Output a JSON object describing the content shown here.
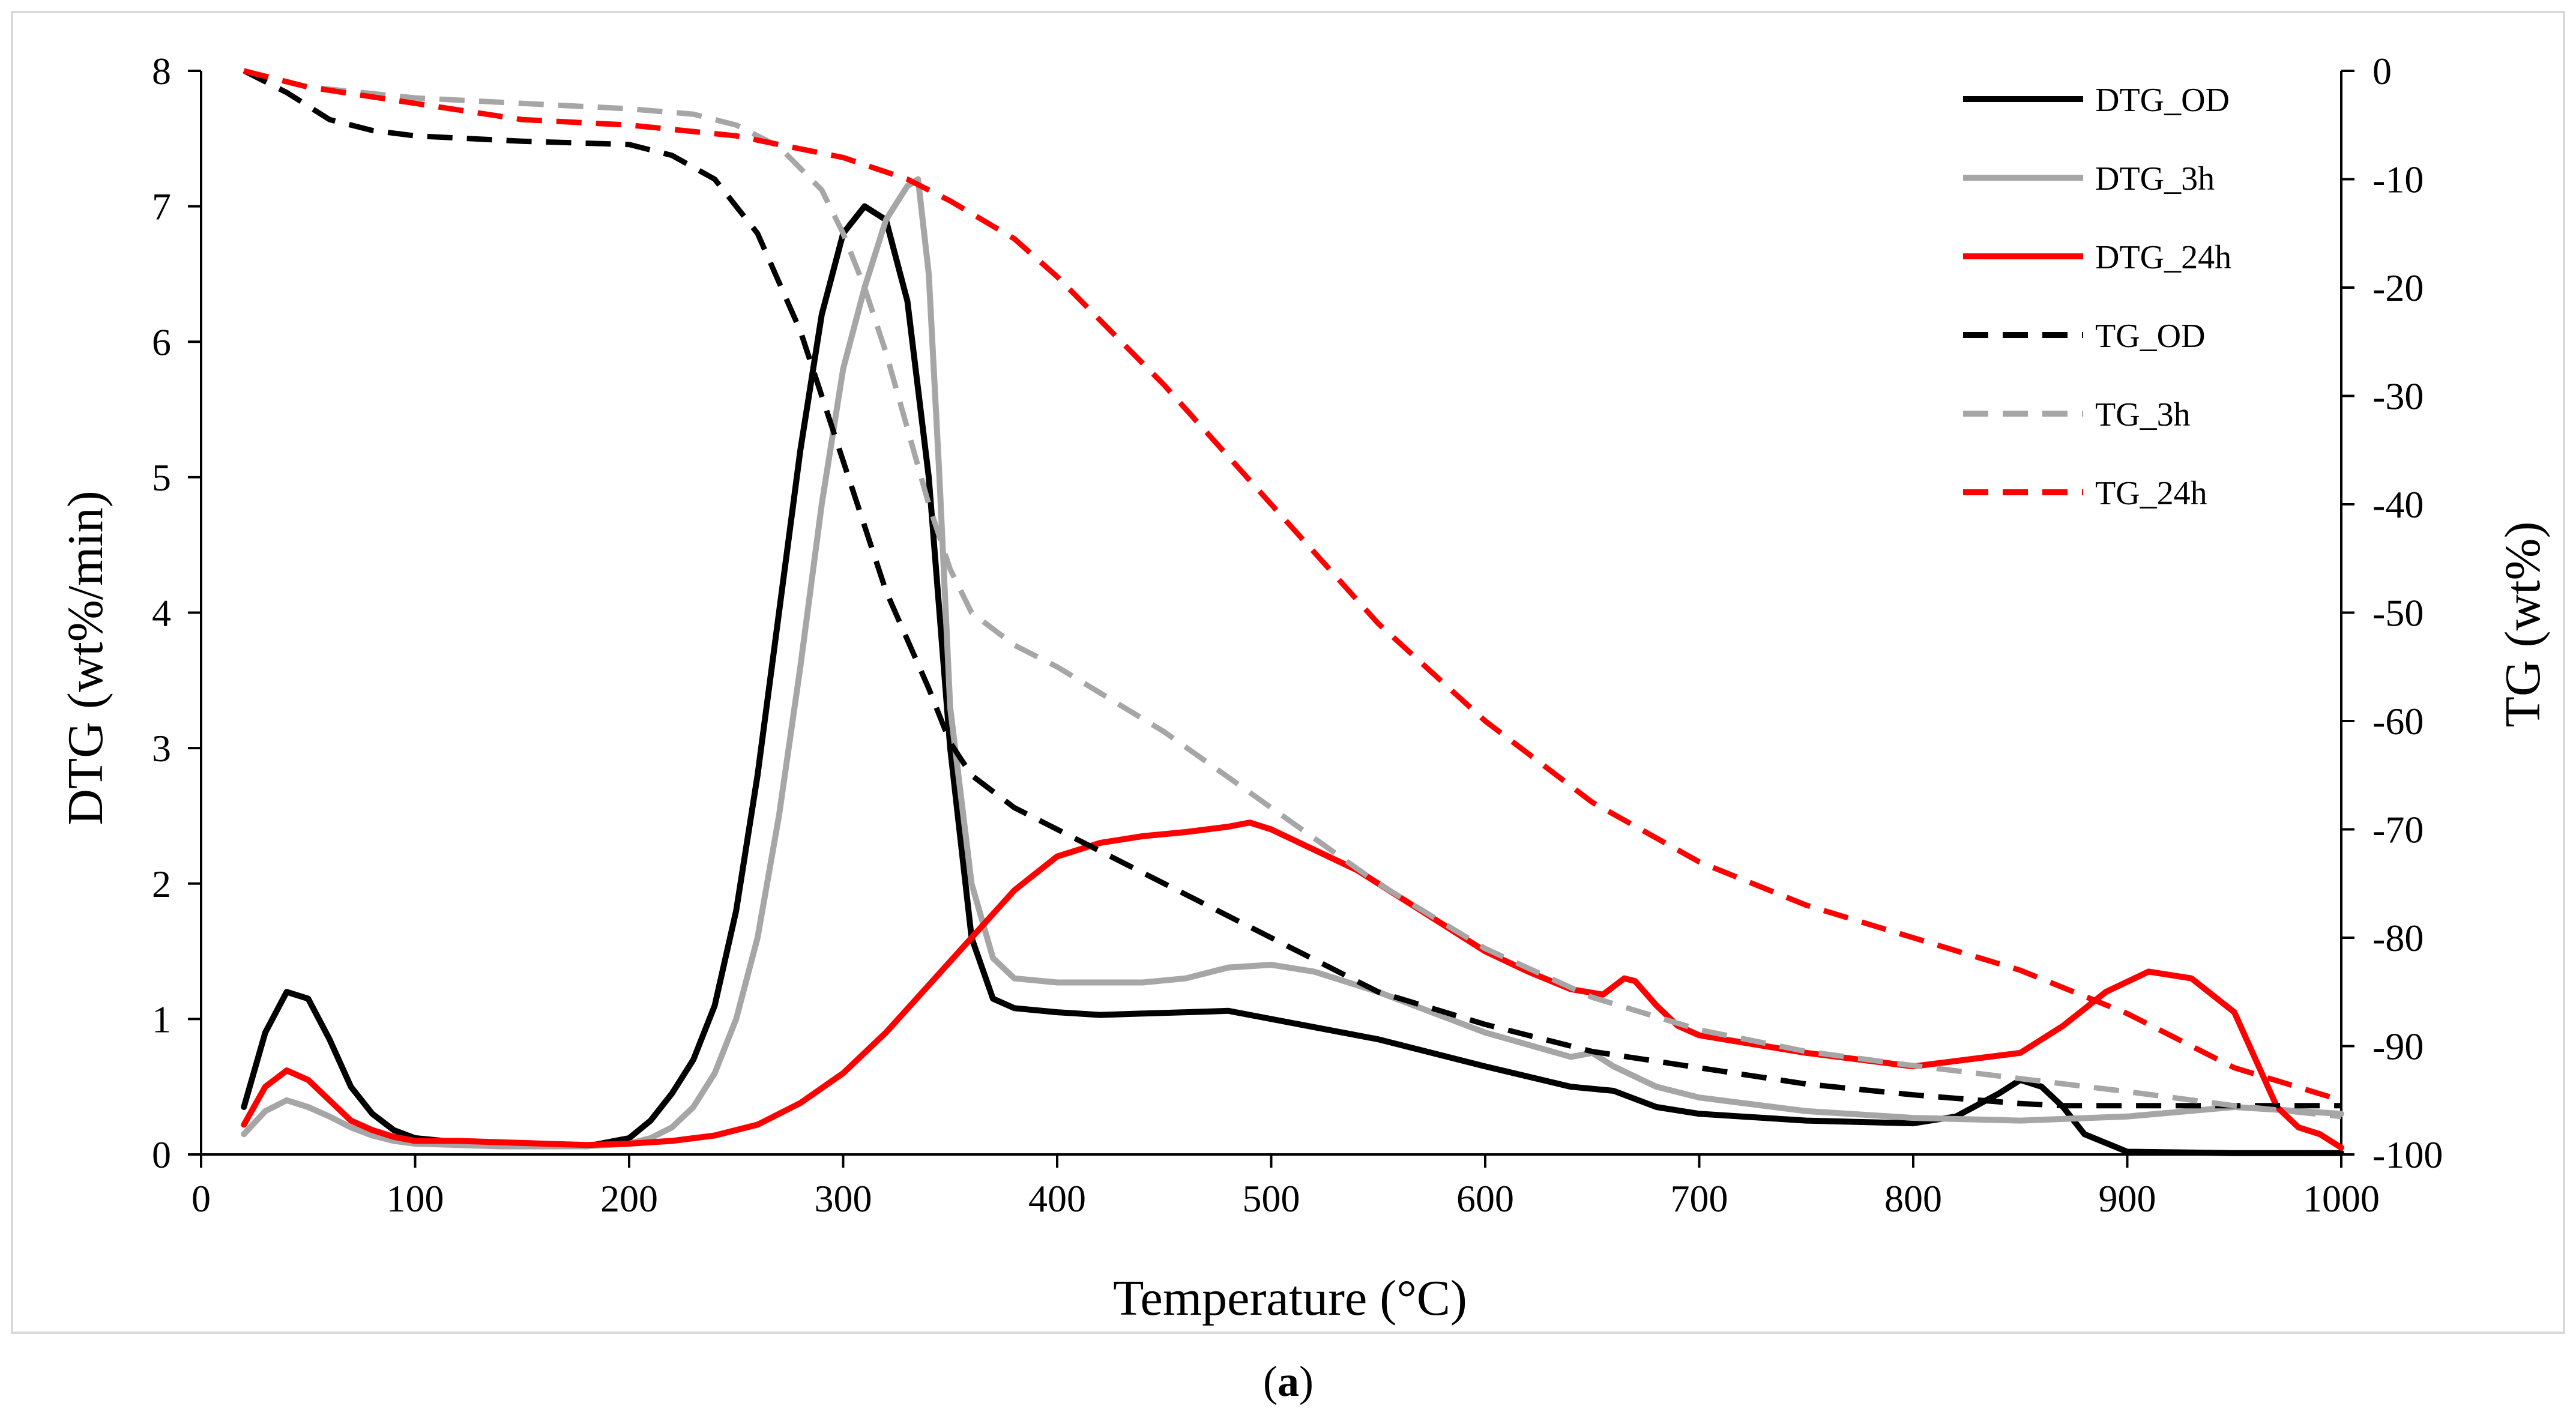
{
  "caption": {
    "prefix": "(",
    "letter": "a",
    "suffix": ")"
  },
  "chart_data": {
    "type": "line",
    "xlabel": "Temperature (°C)",
    "ylabel": "DTG (wt%/min)",
    "y2label": "TG (wt%)",
    "xlim": [
      0,
      1000
    ],
    "ylim": [
      0,
      8
    ],
    "y2lim": [
      -100,
      0
    ],
    "xticks": [
      "0",
      "100",
      "200",
      "300",
      "400",
      "500",
      "600",
      "700",
      "800",
      "900",
      "1000"
    ],
    "yticks": [
      "0",
      "1",
      "2",
      "3",
      "4",
      "5",
      "6",
      "7",
      "8"
    ],
    "y2ticks": [
      "0",
      "-10",
      "-20",
      "-30",
      "-40",
      "-50",
      "-60",
      "-70",
      "-80",
      "-90",
      "-100"
    ],
    "grid": false,
    "legend_position": "top-right",
    "series": [
      {
        "name": "DTG_OD",
        "axis": "left",
        "style": "solid",
        "color": "#000000",
        "x": [
          20,
          30,
          40,
          50,
          60,
          70,
          80,
          90,
          100,
          120,
          140,
          160,
          180,
          200,
          210,
          220,
          230,
          240,
          250,
          260,
          270,
          280,
          290,
          300,
          310,
          320,
          330,
          340,
          350,
          360,
          370,
          380,
          400,
          420,
          440,
          460,
          480,
          500,
          550,
          600,
          640,
          660,
          680,
          700,
          750,
          800,
          820,
          840,
          850,
          860,
          870,
          880,
          900,
          950,
          1000
        ],
        "y": [
          0.35,
          0.9,
          1.2,
          1.15,
          0.85,
          0.5,
          0.3,
          0.18,
          0.12,
          0.09,
          0.08,
          0.07,
          0.06,
          0.12,
          0.25,
          0.45,
          0.7,
          1.1,
          1.8,
          2.8,
          4.0,
          5.2,
          6.2,
          6.8,
          7.0,
          6.9,
          6.3,
          5.0,
          3.0,
          1.6,
          1.15,
          1.08,
          1.05,
          1.03,
          1.04,
          1.05,
          1.06,
          1.0,
          0.85,
          0.65,
          0.5,
          0.47,
          0.35,
          0.3,
          0.25,
          0.23,
          0.28,
          0.45,
          0.55,
          0.5,
          0.35,
          0.15,
          0.02,
          0.01,
          0.01
        ]
      },
      {
        "name": "DTG_3h",
        "axis": "left",
        "style": "solid",
        "color": "#a6a6a6",
        "x": [
          20,
          30,
          40,
          50,
          60,
          70,
          80,
          90,
          100,
          120,
          140,
          160,
          180,
          200,
          210,
          220,
          230,
          240,
          250,
          260,
          270,
          280,
          290,
          300,
          310,
          320,
          330,
          335,
          340,
          345,
          350,
          360,
          370,
          380,
          400,
          420,
          440,
          460,
          480,
          500,
          520,
          550,
          600,
          640,
          650,
          660,
          680,
          700,
          750,
          800,
          850,
          900,
          950,
          1000
        ],
        "y": [
          0.15,
          0.32,
          0.4,
          0.35,
          0.28,
          0.2,
          0.14,
          0.1,
          0.08,
          0.07,
          0.06,
          0.06,
          0.06,
          0.08,
          0.12,
          0.2,
          0.35,
          0.6,
          1.0,
          1.6,
          2.5,
          3.6,
          4.8,
          5.8,
          6.4,
          6.9,
          7.15,
          7.2,
          6.5,
          5.0,
          3.3,
          2.0,
          1.45,
          1.3,
          1.27,
          1.27,
          1.27,
          1.3,
          1.38,
          1.4,
          1.35,
          1.2,
          0.9,
          0.72,
          0.75,
          0.65,
          0.5,
          0.42,
          0.32,
          0.27,
          0.25,
          0.28,
          0.35,
          0.3
        ]
      },
      {
        "name": "DTG_24h",
        "axis": "left",
        "style": "solid",
        "color": "#ff0000",
        "x": [
          20,
          30,
          40,
          50,
          60,
          70,
          80,
          90,
          100,
          120,
          140,
          160,
          180,
          200,
          220,
          240,
          260,
          280,
          300,
          320,
          340,
          360,
          380,
          400,
          420,
          440,
          460,
          480,
          490,
          500,
          520,
          540,
          560,
          580,
          600,
          620,
          640,
          655,
          665,
          670,
          680,
          690,
          700,
          750,
          800,
          850,
          870,
          890,
          910,
          930,
          950,
          960,
          970,
          980,
          990,
          1000
        ],
        "y": [
          0.22,
          0.5,
          0.62,
          0.55,
          0.4,
          0.25,
          0.18,
          0.13,
          0.1,
          0.1,
          0.09,
          0.08,
          0.07,
          0.08,
          0.1,
          0.14,
          0.22,
          0.38,
          0.6,
          0.9,
          1.25,
          1.6,
          1.95,
          2.2,
          2.3,
          2.35,
          2.38,
          2.42,
          2.45,
          2.4,
          2.25,
          2.1,
          1.9,
          1.7,
          1.5,
          1.35,
          1.22,
          1.18,
          1.3,
          1.28,
          1.1,
          0.95,
          0.88,
          0.75,
          0.65,
          0.75,
          0.95,
          1.2,
          1.35,
          1.3,
          1.05,
          0.7,
          0.35,
          0.2,
          0.15,
          0.05
        ]
      },
      {
        "name": "TG_OD",
        "axis": "right",
        "style": "dashed",
        "color": "#000000",
        "x": [
          20,
          40,
          60,
          80,
          100,
          150,
          200,
          220,
          240,
          260,
          280,
          300,
          320,
          340,
          350,
          360,
          380,
          400,
          450,
          500,
          550,
          600,
          650,
          700,
          750,
          800,
          850,
          870,
          900,
          950,
          1000
        ],
        "y": [
          0,
          -2,
          -4.5,
          -5.5,
          -6,
          -6.5,
          -6.8,
          -7.8,
          -10,
          -15,
          -24,
          -36,
          -48,
          -57,
          -62,
          -65,
          -68,
          -70,
          -75,
          -80,
          -85,
          -88,
          -90.5,
          -92,
          -93.5,
          -94.5,
          -95.3,
          -95.5,
          -95.5,
          -95.5,
          -95.5
        ]
      },
      {
        "name": "TG_3h",
        "axis": "right",
        "style": "dashed",
        "color": "#a6a6a6",
        "x": [
          20,
          50,
          100,
          150,
          200,
          230,
          250,
          270,
          290,
          300,
          310,
          320,
          330,
          340,
          350,
          360,
          380,
          400,
          450,
          500,
          550,
          600,
          650,
          700,
          750,
          800,
          850,
          900,
          950,
          1000
        ],
        "y": [
          0,
          -1.5,
          -2.5,
          -3,
          -3.5,
          -4,
          -5,
          -7,
          -11,
          -15,
          -20,
          -26,
          -33,
          -40,
          -46,
          -50,
          -53,
          -55,
          -61,
          -68,
          -75,
          -81,
          -85.5,
          -88.5,
          -90.5,
          -91.8,
          -93,
          -94.2,
          -95.5,
          -96.5
        ]
      },
      {
        "name": "TG_24h",
        "axis": "right",
        "style": "dashed",
        "color": "#ff0000",
        "x": [
          20,
          50,
          100,
          150,
          200,
          250,
          300,
          330,
          350,
          380,
          400,
          450,
          500,
          550,
          600,
          650,
          700,
          750,
          800,
          850,
          900,
          950,
          1000
        ],
        "y": [
          0,
          -1.5,
          -3,
          -4.5,
          -5,
          -6,
          -8,
          -10,
          -12,
          -15.5,
          -19,
          -29,
          -40,
          -51,
          -60,
          -67.5,
          -73,
          -77,
          -80,
          -83,
          -87,
          -92,
          -95
        ]
      }
    ]
  }
}
